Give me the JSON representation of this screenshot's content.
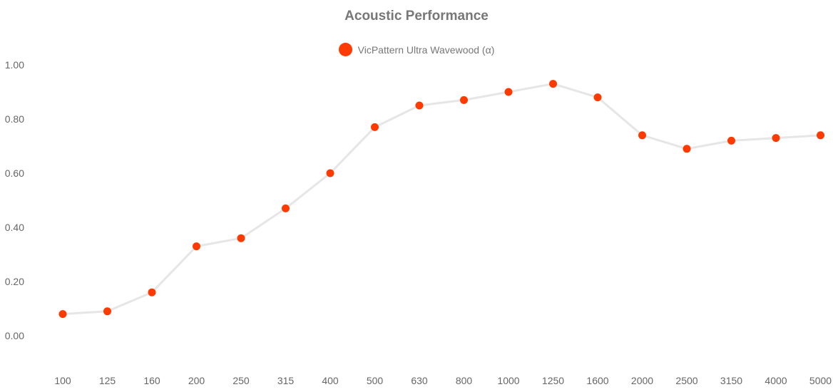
{
  "chart_data": {
    "type": "line",
    "title": "Acoustic Performance",
    "xlabel": "",
    "ylabel": "",
    "categories": [
      "100",
      "125",
      "160",
      "200",
      "250",
      "315",
      "400",
      "500",
      "630",
      "800",
      "1000",
      "1250",
      "1600",
      "2000",
      "2500",
      "3150",
      "4000",
      "5000"
    ],
    "series": [
      {
        "name": "VicPattern Ultra Wavewood (α)",
        "values": [
          0.08,
          0.09,
          0.16,
          0.33,
          0.36,
          0.47,
          0.6,
          0.77,
          0.85,
          0.87,
          0.9,
          0.93,
          0.88,
          0.74,
          0.69,
          0.72,
          0.73,
          0.74
        ]
      }
    ],
    "yticks": [
      "0.00",
      "0.20",
      "0.40",
      "0.60",
      "0.80",
      "1.00"
    ],
    "ylim": [
      -0.1,
      1.1
    ],
    "grid": false,
    "legend_position": "top-center"
  },
  "colors": {
    "point": "#ff3a00",
    "line": "#e6e6e6",
    "title": "#777777",
    "ticks": "#666666"
  }
}
